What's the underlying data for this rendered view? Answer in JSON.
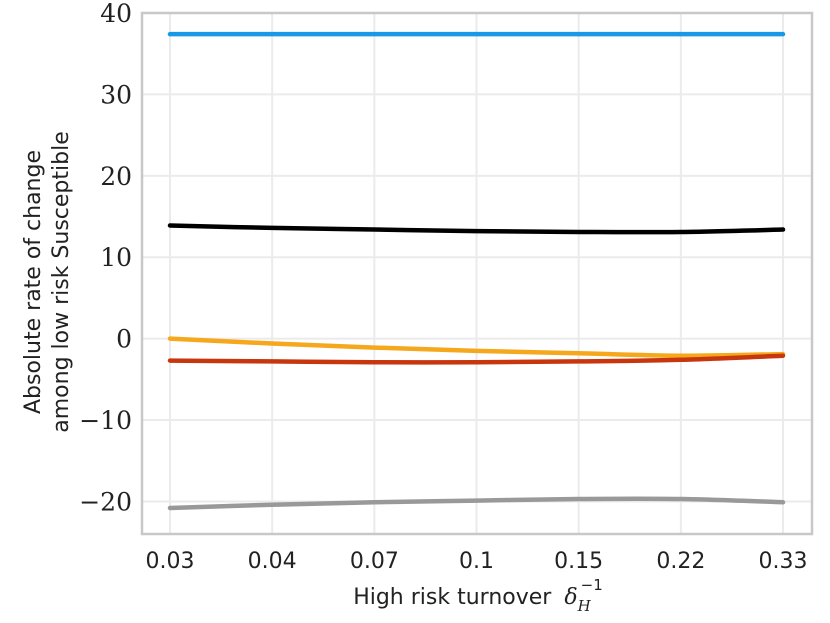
{
  "chart_data": {
    "type": "line",
    "title": "",
    "xlabel": "High risk turnover",
    "xlabel_symbol": "δ",
    "xlabel_sub": "H",
    "xlabel_sup": "−1",
    "ylabel_line1": "Absolute rate of change",
    "ylabel_line2": "among low risk Susceptible",
    "categories": [
      "0.03",
      "0.04",
      "0.07",
      "0.1",
      "0.15",
      "0.22",
      "0.33"
    ],
    "ylim": [
      -24,
      40
    ],
    "yticks": [
      -20,
      -10,
      0,
      10,
      20,
      30,
      40
    ],
    "ytick_labels": [
      "−20",
      "−10",
      "0",
      "10",
      "20",
      "30",
      "40"
    ],
    "grid": true,
    "series": [
      {
        "name": "blue",
        "color": "#1a98e8",
        "values": [
          37.4,
          37.4,
          37.4,
          37.4,
          37.4,
          37.4,
          37.4
        ]
      },
      {
        "name": "black",
        "color": "#000000",
        "values": [
          13.9,
          13.6,
          13.4,
          13.2,
          13.1,
          13.1,
          13.4
        ]
      },
      {
        "name": "yellow",
        "color": "#f5a81c",
        "values": [
          0.0,
          -0.6,
          -1.1,
          -1.5,
          -1.8,
          -2.1,
          -1.9
        ]
      },
      {
        "name": "red",
        "color": "#c8360e",
        "values": [
          -2.7,
          -2.8,
          -2.9,
          -2.9,
          -2.8,
          -2.6,
          -2.1
        ]
      },
      {
        "name": "gray",
        "color": "#999999",
        "values": [
          -20.8,
          -20.4,
          -20.1,
          -19.9,
          -19.7,
          -19.7,
          -20.1
        ]
      }
    ]
  }
}
